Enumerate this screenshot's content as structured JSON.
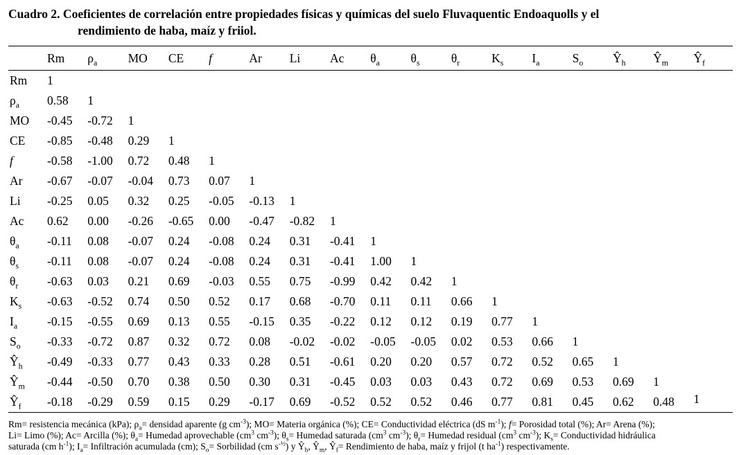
{
  "title": {
    "line1": "Cuadro 2. Coeficientes de correlación entre propiedades físicas y químicas del suelo Fluvaquentic Endoaquolls y el",
    "line2": "rendimiento de haba, maíz y friiol."
  },
  "table": {
    "columns": [
      {
        "base": "Rm"
      },
      {
        "base": "ρ",
        "sub": "a"
      },
      {
        "base": "MO"
      },
      {
        "base": "CE"
      },
      {
        "base": "f",
        "italic": true
      },
      {
        "base": "Ar"
      },
      {
        "base": "Li"
      },
      {
        "base": "Ac"
      },
      {
        "base": "θ",
        "sub": "a"
      },
      {
        "base": "θ",
        "sub": "s"
      },
      {
        "base": "θ",
        "sub": "r"
      },
      {
        "base": "K",
        "sub": "s"
      },
      {
        "base": "I",
        "sub": "a"
      },
      {
        "base": "S",
        "sub": "o"
      },
      {
        "base": "Ŷ",
        "sub": "h"
      },
      {
        "base": "Ŷ",
        "sub": "m"
      },
      {
        "base": "Ŷ",
        "sub": "f"
      }
    ],
    "rows": [
      {
        "label": {
          "base": "Rm"
        },
        "values": [
          "1"
        ]
      },
      {
        "label": {
          "base": "ρ",
          "sub": "a"
        },
        "values": [
          "0.58",
          "1"
        ]
      },
      {
        "label": {
          "base": "MO"
        },
        "values": [
          "-0.45",
          "-0.72",
          "1"
        ]
      },
      {
        "label": {
          "base": "CE"
        },
        "values": [
          "-0.85",
          "-0.48",
          "0.29",
          "1"
        ]
      },
      {
        "label": {
          "base": "f",
          "italic": true
        },
        "values": [
          "-0.58",
          "-1.00",
          "0.72",
          "0.48",
          "1"
        ]
      },
      {
        "label": {
          "base": "Ar"
        },
        "values": [
          "-0.67",
          "-0.07",
          "-0.04",
          "0.73",
          "0.07",
          "1"
        ]
      },
      {
        "label": {
          "base": "Li"
        },
        "values": [
          "-0.25",
          "0.05",
          "0.32",
          "0.25",
          "-0.05",
          "-0.13",
          "1"
        ]
      },
      {
        "label": {
          "base": "Ac"
        },
        "values": [
          "0.62",
          "0.00",
          "-0.26",
          "-0.65",
          "0.00",
          "-0.47",
          "-0.82",
          "1"
        ]
      },
      {
        "label": {
          "base": "θ",
          "sub": "a"
        },
        "values": [
          "-0.11",
          "0.08",
          "-0.07",
          "0.24",
          "-0.08",
          "0.24",
          "0.31",
          "-0.41",
          "1"
        ]
      },
      {
        "label": {
          "base": "θ",
          "sub": "s"
        },
        "values": [
          "-0.11",
          "0.08",
          "-0.07",
          "0.24",
          "-0.08",
          "0.24",
          "0.31",
          "-0.41",
          "1.00",
          "1"
        ]
      },
      {
        "label": {
          "base": "θ",
          "sub": "r"
        },
        "values": [
          "-0.63",
          "0.03",
          "0.21",
          "0.69",
          "-0.03",
          "0.55",
          "0.75",
          "-0.99",
          "0.42",
          "0.42",
          "1"
        ]
      },
      {
        "label": {
          "base": "K",
          "sub": "s"
        },
        "values": [
          "-0.63",
          "-0.52",
          "0.74",
          "0.50",
          "0.52",
          "0.17",
          "0.68",
          "-0.70",
          "0.11",
          "0.11",
          "0.66",
          "1"
        ]
      },
      {
        "label": {
          "base": "I",
          "sub": "a"
        },
        "values": [
          "-0.15",
          "-0.55",
          "0.69",
          "0.13",
          "0.55",
          "-0.15",
          "0.35",
          "-0.22",
          "0.12",
          "0.12",
          "0.19",
          "0.77",
          "1"
        ]
      },
      {
        "label": {
          "base": "S",
          "sub": "o"
        },
        "values": [
          "-0.33",
          "-0.72",
          "0.87",
          "0.32",
          "0.72",
          "0.08",
          "-0.02",
          "-0.02",
          "-0.05",
          "-0.05",
          "0.02",
          "0.53",
          "0.66",
          "1"
        ]
      },
      {
        "label": {
          "base": "Ŷ",
          "sub": "h"
        },
        "values": [
          "-0.49",
          "-0.33",
          "0.77",
          "0.43",
          "0.33",
          "0.28",
          "0.51",
          "-0.61",
          "0.20",
          "0.20",
          "0.57",
          "0.72",
          "0.52",
          "0.65",
          "1"
        ]
      },
      {
        "label": {
          "base": "Ŷ",
          "sub": "m"
        },
        "values": [
          "-0.44",
          "-0.50",
          "0.70",
          "0.38",
          "0.50",
          "0.30",
          "0.31",
          "-0.45",
          "0.03",
          "0.03",
          "0.43",
          "0.72",
          "0.69",
          "0.53",
          "0.69",
          "1"
        ]
      },
      {
        "label": {
          "base": "Ŷ",
          "sub": "f"
        },
        "values": [
          "-0.18",
          "-0.29",
          "0.59",
          "0.15",
          "0.29",
          "-0.17",
          "0.69",
          "-0.52",
          "0.52",
          "0.52",
          "0.46",
          "0.77",
          "0.81",
          "0.45",
          "0.62",
          "0.48",
          "1"
        ]
      }
    ]
  },
  "footnote": {
    "lines": [
      [
        {
          "t": "Rm= resistencia mecánica (kPa); ρ"
        },
        {
          "t": "a",
          "m": "sub"
        },
        {
          "t": "= densidad aparente (g cm"
        },
        {
          "t": "-3",
          "m": "sup"
        },
        {
          "t": "); MO= Materia orgánica (%); CE= Conductividad eléctrica (dS m"
        },
        {
          "t": "-1",
          "m": "sup"
        },
        {
          "t": "); "
        },
        {
          "t": "f",
          "m": "i"
        },
        {
          "t": "= Porosidad total (%); Ar= Arena (%);"
        }
      ],
      [
        {
          "t": "Li= Limo (%); Ac= Arcilla (%); θ"
        },
        {
          "t": "a",
          "m": "sub"
        },
        {
          "t": "= Humedad aprovechable (cm"
        },
        {
          "t": "3",
          "m": "sup"
        },
        {
          "t": " cm"
        },
        {
          "t": "-3",
          "m": "sup"
        },
        {
          "t": "); θ"
        },
        {
          "t": "s",
          "m": "sub"
        },
        {
          "t": "= Humedad saturada (cm"
        },
        {
          "t": "3",
          "m": "sup"
        },
        {
          "t": " cm"
        },
        {
          "t": "-3",
          "m": "sup"
        },
        {
          "t": "); θ"
        },
        {
          "t": "r",
          "m": "sub"
        },
        {
          "t": "= Humedad residual (cm"
        },
        {
          "t": "3",
          "m": "sup"
        },
        {
          "t": " cm"
        },
        {
          "t": "-3",
          "m": "sup"
        },
        {
          "t": "); K"
        },
        {
          "t": "s",
          "m": "sub"
        },
        {
          "t": "= Conductividad hidráulica"
        }
      ],
      [
        {
          "t": "saturada (cm h"
        },
        {
          "t": "-1",
          "m": "sup"
        },
        {
          "t": "); I"
        },
        {
          "t": "a",
          "m": "sub"
        },
        {
          "t": "= Infiltración acumulada (cm); S"
        },
        {
          "t": "o",
          "m": "sub"
        },
        {
          "t": "= Sorbilidad (cm s"
        },
        {
          "t": "-½",
          "m": "sup"
        },
        {
          "t": ") y Ŷ"
        },
        {
          "t": "h",
          "m": "sub"
        },
        {
          "t": ", Ŷ"
        },
        {
          "t": "m",
          "m": "sub"
        },
        {
          "t": ", Ŷ"
        },
        {
          "t": "f",
          "m": "sub"
        },
        {
          "t": "= Rendimiento de haba, maíz y frijol (t ha"
        },
        {
          "t": "-1",
          "m": "sup"
        },
        {
          "t": ") respectivamente."
        }
      ]
    ]
  }
}
